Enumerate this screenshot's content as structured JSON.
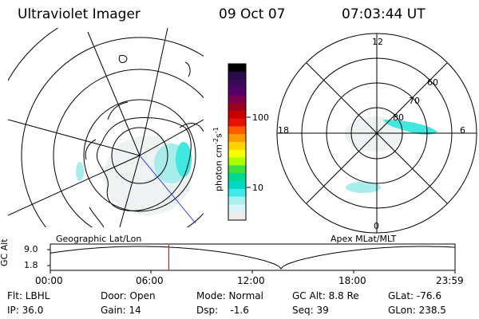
{
  "header": {
    "title": "Ultraviolet Imager",
    "date": "09 Oct 07",
    "time": "07:03:44 UT"
  },
  "colorbar": {
    "unit_label": "photon cm",
    "unit_exp1": "-2",
    "unit_s": "s",
    "unit_exp2": "-1",
    "ticks": [
      "100",
      "10"
    ],
    "colors": [
      "#000000",
      "#2a0a4a",
      "#3b0a5a",
      "#55006a",
      "#7a0050",
      "#9a0020",
      "#c80000",
      "#e81000",
      "#ff5a00",
      "#ff9a00",
      "#ffd200",
      "#f5ff00",
      "#aaff00",
      "#40e040",
      "#00d890",
      "#00d8c8",
      "#40e8e8",
      "#a8f0f0",
      "#d8f4f4",
      "#ececec"
    ]
  },
  "left_panel": {
    "caption": "Geographic Lat/Lon"
  },
  "right_panel": {
    "caption": "Apex MLat/MLT",
    "mlt_labels": {
      "top": "12",
      "left": "18",
      "right": "6",
      "bottom": "0"
    },
    "lat_labels": [
      "60",
      "70",
      "80"
    ]
  },
  "timeline": {
    "ylabel": "GC Alt",
    "yticks": [
      "9.0",
      "1.8"
    ],
    "xticks": [
      "00:00",
      "06:00",
      "12:00",
      "18:00",
      "23:59"
    ],
    "current_fraction": 0.2929,
    "marker_color": "#ff0000"
  },
  "info": {
    "flt": "Flt: LBHL",
    "ip": "IP: 36.0",
    "door": "Door: Open",
    "gain": "Gain: 14",
    "mode": "Mode: Normal",
    "dsp": "Dsp:    -1.6",
    "gcalt": "GC Alt: 8.8 Re",
    "seq": "Seq: 39",
    "glat": "GLat: -76.6",
    "glon": "GLon: 238.5"
  }
}
